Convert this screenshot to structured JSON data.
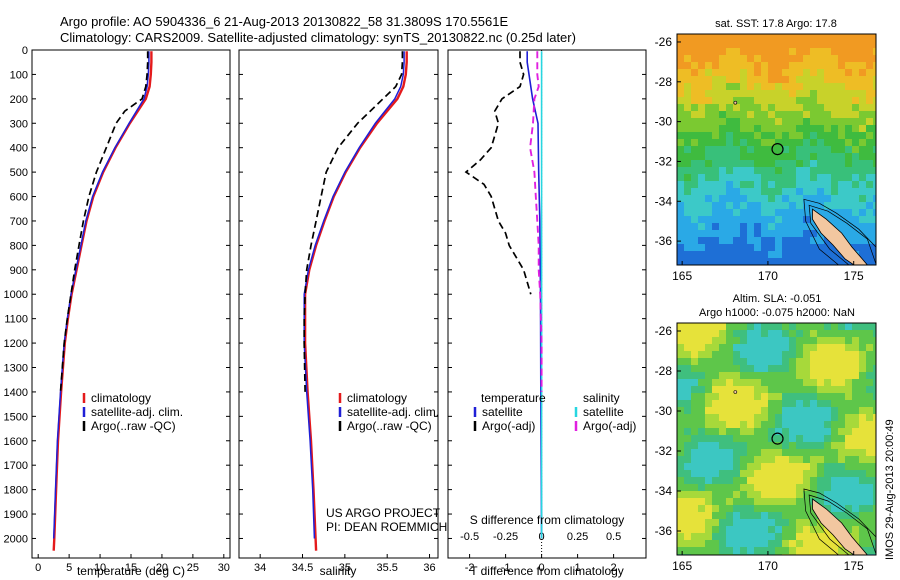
{
  "header": {
    "line1": "Argo profile: AO 5904336_6 21-Aug-2013 20130822_58 31.3809S 170.5561E",
    "line2": "Climatology: CARS2009. Satellite-adjusted climatology: synTS_20130822.nc (0.25d later)"
  },
  "footer": {
    "project": "US ARGO PROJECT",
    "pi": "PI: DEAN ROEMMICH",
    "imos": "IMOS 29-Aug-2013 20:00:49"
  },
  "colors": {
    "climatology": "#e41a1c",
    "satellite": "#1f1fd6",
    "argo": "#000000",
    "satellite_s": "#27d6e0",
    "argo_s": "#e020e0"
  },
  "chart_data": [
    {
      "type": "line",
      "xlabel": "temperature (deg C)",
      "ylabel": "",
      "xlim": [
        -1,
        31
      ],
      "ylim": [
        2080,
        0
      ],
      "xticks": [
        0,
        5,
        10,
        15,
        20,
        25,
        30
      ],
      "yticks": [
        0,
        100,
        200,
        300,
        400,
        500,
        600,
        700,
        800,
        900,
        1000,
        1100,
        1200,
        1300,
        1400,
        1500,
        1600,
        1700,
        1800,
        1900,
        2000
      ],
      "legend": [
        "climatology",
        "satellite-adj. clim.",
        "Argo(..raw -QC)"
      ],
      "series": [
        {
          "name": "climatology",
          "depth": [
            5,
            50,
            100,
            150,
            200,
            300,
            400,
            500,
            600,
            700,
            800,
            900,
            1000,
            1100,
            1200,
            1400,
            1600,
            1800,
            2000,
            2050
          ],
          "values": [
            18.3,
            18.3,
            18.2,
            18.0,
            17.4,
            14.8,
            12.5,
            10.5,
            8.9,
            7.8,
            7.0,
            6.2,
            5.4,
            4.8,
            4.3,
            3.7,
            3.2,
            2.9,
            2.6,
            2.5
          ]
        },
        {
          "name": "satellite-adj. clim.",
          "depth": [
            5,
            50,
            100,
            150,
            200,
            300,
            400,
            500,
            600,
            700,
            800,
            900,
            1000,
            1100,
            1200,
            1400,
            1600,
            1800,
            2000
          ],
          "values": [
            17.9,
            17.9,
            17.8,
            17.6,
            17.1,
            14.7,
            12.4,
            10.4,
            8.8,
            7.7,
            6.9,
            6.1,
            5.3,
            4.7,
            4.2,
            3.6,
            3.1,
            2.8,
            2.5
          ]
        },
        {
          "name": "Argo(..raw -QC)",
          "depth": [
            5,
            50,
            100,
            150,
            200,
            250,
            300,
            400,
            500,
            600,
            700,
            800,
            900,
            1000,
            1100,
            1200,
            1400
          ],
          "values": [
            17.7,
            17.7,
            17.6,
            17.4,
            16.8,
            14.0,
            12.6,
            11.0,
            9.4,
            8.2,
            7.3,
            6.6,
            5.9,
            5.3,
            4.7,
            4.2,
            3.6
          ]
        }
      ]
    },
    {
      "type": "line",
      "xlabel": "salinity",
      "ylabel": "",
      "xlim": [
        33.75,
        36.1
      ],
      "ylim": [
        2080,
        0
      ],
      "xticks": [
        34,
        34.5,
        35,
        35.5,
        36
      ],
      "xticklabels": [
        "34",
        "34.5",
        "35",
        "35.5",
        "36"
      ],
      "legend": [
        "climatology",
        "satellite-adj. clim.",
        "Argo(..raw -QC)"
      ],
      "series": [
        {
          "name": "climatology",
          "depth": [
            5,
            50,
            100,
            150,
            200,
            300,
            400,
            500,
            600,
            700,
            800,
            900,
            1000,
            1200,
            1400,
            1600,
            1800,
            2050
          ],
          "values": [
            35.73,
            35.73,
            35.72,
            35.69,
            35.62,
            35.38,
            35.18,
            35.01,
            34.87,
            34.76,
            34.66,
            34.58,
            34.53,
            34.53,
            34.56,
            34.6,
            34.63,
            34.66
          ]
        },
        {
          "name": "satellite-adj. clim.",
          "depth": [
            5,
            50,
            100,
            150,
            200,
            300,
            400,
            500,
            600,
            700,
            800,
            900,
            1000,
            1200,
            1400,
            1600,
            1800,
            2000
          ],
          "values": [
            35.7,
            35.7,
            35.69,
            35.66,
            35.59,
            35.36,
            35.17,
            35.0,
            34.86,
            34.75,
            34.65,
            34.57,
            34.52,
            34.52,
            34.55,
            34.59,
            34.62,
            34.64
          ]
        },
        {
          "name": "Argo(..raw -QC)",
          "depth": [
            5,
            50,
            100,
            150,
            200,
            250,
            300,
            400,
            500,
            600,
            700,
            800,
            900,
            1000,
            1100,
            1200,
            1400
          ],
          "values": [
            35.68,
            35.68,
            35.67,
            35.6,
            35.45,
            35.3,
            35.15,
            34.92,
            34.78,
            34.72,
            34.66,
            34.6,
            34.55,
            34.53,
            34.52,
            34.52,
            34.53
          ]
        }
      ]
    },
    {
      "type": "line",
      "xlabel": "T difference from climatology",
      "xlabel_top": "S difference from climatology",
      "xlim": [
        -2.6,
        2.9
      ],
      "ylim": [
        2080,
        0
      ],
      "xticks": [
        -2,
        -1,
        0,
        1,
        2
      ],
      "xticks_top": [
        -0.5,
        -0.25,
        0,
        0.25,
        0.5
      ],
      "legend": [
        "temperature",
        "satellite",
        "Argo(-adj)",
        "salinity",
        "satellite",
        "Argo(-adj)"
      ],
      "series": [
        {
          "name": "temperature satellite",
          "depth": [
            5,
            50,
            100,
            150,
            200,
            300,
            500,
            700,
            1000,
            1500,
            2000
          ],
          "values": [
            -0.4,
            -0.4,
            -0.35,
            -0.3,
            -0.25,
            -0.1,
            -0.08,
            -0.05,
            -0.03,
            -0.02,
            0.0
          ]
        },
        {
          "name": "temperature Argo(-adj)",
          "depth": [
            5,
            50,
            100,
            150,
            200,
            250,
            300,
            400,
            450,
            500,
            550,
            600,
            650,
            700,
            750,
            800,
            850,
            900,
            950,
            1000
          ],
          "values": [
            -0.6,
            -0.6,
            -0.5,
            -0.6,
            -1.1,
            -1.3,
            -1.2,
            -1.4,
            -1.7,
            -2.1,
            -1.6,
            -1.4,
            -1.3,
            -1.2,
            -1.0,
            -0.9,
            -0.7,
            -0.5,
            -0.4,
            -0.3
          ]
        },
        {
          "name": "salinity satellite",
          "depth": [
            5,
            100,
            300,
            600,
            1000,
            1500,
            2000
          ],
          "values": [
            0.0,
            0.0,
            0.0,
            0.0,
            0.0,
            0.0,
            0.0
          ]
        },
        {
          "name": "salinity Argo(-adj)",
          "depth": [
            5,
            100,
            150,
            200,
            300,
            400,
            500,
            600,
            700,
            800,
            900,
            1000,
            1200,
            1400
          ],
          "values": [
            -0.03,
            -0.03,
            -0.02,
            -0.05,
            -0.06,
            -0.08,
            -0.05,
            -0.04,
            -0.03,
            -0.02,
            -0.02,
            -0.01,
            0.0,
            0.0
          ]
        }
      ]
    },
    {
      "type": "heatmap",
      "title": "sat. SST: 17.8  Argo: 17.8",
      "xlim": [
        164.7,
        176.3
      ],
      "ylim": [
        -37.2,
        -25.6
      ],
      "xticks": [
        165,
        170,
        175
      ],
      "yticks": [
        -26,
        -28,
        -30,
        -32,
        -34,
        -36
      ],
      "marker": [
        170.56,
        -31.38
      ]
    },
    {
      "type": "heatmap",
      "title": "Altim. SLA: -0.051",
      "subtitle": "Argo h1000: -0.075  h2000: NaN",
      "xlim": [
        164.7,
        176.3
      ],
      "ylim": [
        -37.2,
        -25.6
      ],
      "xticks": [
        165,
        170,
        175
      ],
      "yticks": [
        -26,
        -28,
        -30,
        -32,
        -34,
        -36
      ],
      "marker": [
        170.56,
        -31.38
      ]
    }
  ]
}
